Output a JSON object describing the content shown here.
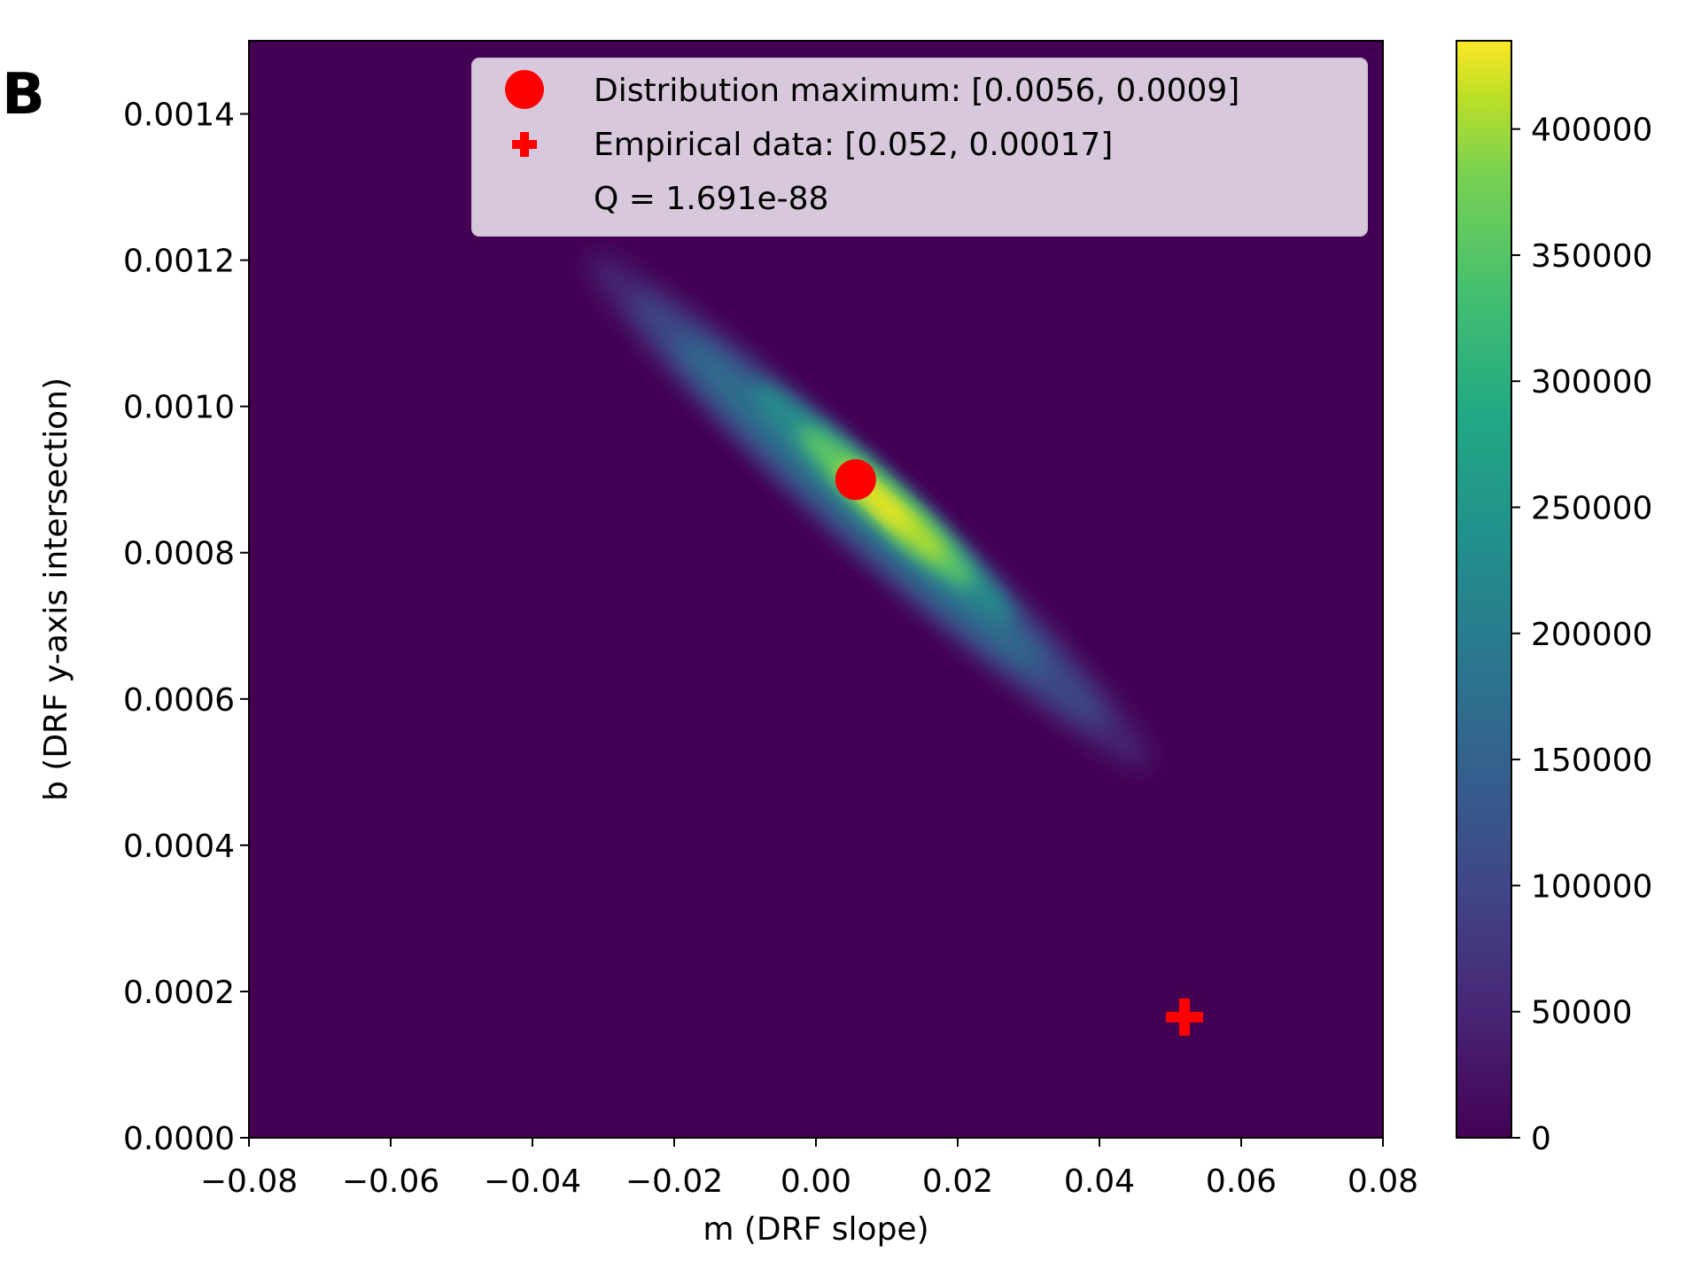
{
  "chart_data": {
    "type": "heatmap",
    "panel_label": "B",
    "xlabel": "m (DRF slope)",
    "ylabel": "b (DRF y-axis intersection)",
    "xlim": [
      -0.08,
      0.08
    ],
    "ylim": [
      0.0,
      0.0015
    ],
    "x_ticks": [
      -0.08,
      -0.06,
      -0.04,
      -0.02,
      0.0,
      0.02,
      0.04,
      0.06,
      0.08
    ],
    "x_tick_labels": [
      "−0.08",
      "−0.06",
      "−0.04",
      "−0.02",
      "0.00",
      "0.02",
      "0.04",
      "0.06",
      "0.08"
    ],
    "y_ticks": [
      0.0,
      0.0002,
      0.0004,
      0.0006,
      0.0008,
      0.001,
      0.0012,
      0.0014
    ],
    "y_tick_labels": [
      "0.0000",
      "0.0002",
      "0.0004",
      "0.0006",
      "0.0008",
      "0.0010",
      "0.0012",
      "0.0014"
    ],
    "colorbar": {
      "colormap": "viridis",
      "range": [
        0,
        435000
      ],
      "ticks": [
        0,
        50000,
        100000,
        150000,
        200000,
        250000,
        300000,
        350000,
        400000
      ],
      "tick_labels": [
        "0",
        "50000",
        "100000",
        "150000",
        "200000",
        "250000",
        "300000",
        "350000",
        "400000"
      ]
    },
    "distribution": {
      "shape": "elongated gaussian ridge",
      "peak_value": 435000,
      "peak": [
        0.0056,
        0.0009
      ],
      "ridge_start": [
        -0.033,
        0.00121
      ],
      "ridge_end": [
        0.043,
        0.00054
      ],
      "background_value": 0
    },
    "points": [
      {
        "label": "Distribution maximum: [0.0056, 0.0009]",
        "x": 0.0056,
        "y": 0.0009,
        "marker": "circle",
        "color": "#ff0000"
      },
      {
        "label": "Empirical data: [0.052, 0.00017]",
        "x": 0.052,
        "y": 0.000165,
        "marker": "plus",
        "color": "#ff0000"
      }
    ],
    "legend": {
      "placement": "top-right",
      "entries": [
        {
          "text": "Distribution maximum: [0.0056, 0.0009]",
          "marker": "circle"
        },
        {
          "text": "Empirical data: [0.052, 0.00017]",
          "marker": "plus"
        },
        {
          "text": "Q = 1.691e-88",
          "marker": "none"
        }
      ]
    }
  }
}
